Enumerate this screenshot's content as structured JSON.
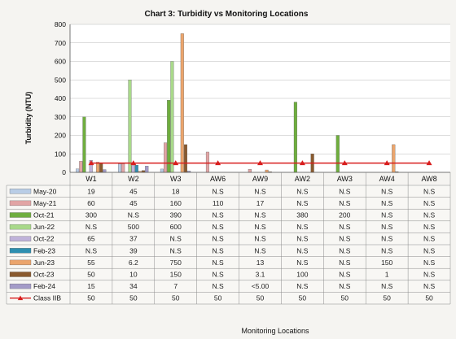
{
  "chart_data": {
    "type": "bar",
    "title": "Chart 3: Turbidity vs Monitoring Locations",
    "xlabel": "Monitoring Locations",
    "ylabel": "Turbidity (NTU)",
    "ylim": [
      0,
      800
    ],
    "yticks": [
      "0",
      "100",
      "200",
      "300",
      "400",
      "500",
      "600",
      "700",
      "800"
    ],
    "categories": [
      "W1",
      "W2",
      "W3",
      "AW6",
      "AW9",
      "AW2",
      "AW3",
      "AW4",
      "AW8"
    ],
    "grid": "horizontal",
    "legend": "data-table-left",
    "series": [
      {
        "name": "May-20",
        "color": "#b9cde6",
        "values": [
          19,
          45,
          18,
          null,
          null,
          null,
          null,
          null,
          null
        ],
        "labels": [
          "19",
          "45",
          "18",
          "N.S",
          "N.S",
          "N.S",
          "N.S",
          "N.S",
          "N.S"
        ]
      },
      {
        "name": "May-21",
        "color": "#e2a5a5",
        "values": [
          60,
          45,
          160,
          110,
          17,
          null,
          null,
          null,
          null
        ],
        "labels": [
          "60",
          "45",
          "160",
          "110",
          "17",
          "N.S",
          "N.S",
          "N.S",
          "N.S"
        ]
      },
      {
        "name": "Oct-21",
        "color": "#6fae3e",
        "values": [
          300,
          null,
          390,
          null,
          null,
          380,
          200,
          null,
          null
        ],
        "labels": [
          "300",
          "N.S",
          "390",
          "N.S",
          "N.S",
          "380",
          "200",
          "N.S",
          "N.S"
        ]
      },
      {
        "name": "Jun-22",
        "color": "#a9d98a",
        "values": [
          null,
          500,
          600,
          null,
          null,
          null,
          null,
          null,
          null
        ],
        "labels": [
          "N.S",
          "500",
          "600",
          "N.S",
          "N.S",
          "N.S",
          "N.S",
          "N.S",
          "N.S"
        ]
      },
      {
        "name": "Oct-22",
        "color": "#bfb2d9",
        "values": [
          65,
          37,
          null,
          null,
          null,
          null,
          null,
          null,
          null
        ],
        "labels": [
          "65",
          "37",
          "N.S",
          "N.S",
          "N.S",
          "N.S",
          "N.S",
          "N.S",
          "N.S"
        ]
      },
      {
        "name": "Feb-23",
        "color": "#2e8fb0",
        "values": [
          null,
          39,
          null,
          null,
          null,
          null,
          null,
          null,
          null
        ],
        "labels": [
          "N.S",
          "39",
          "N.S",
          "N.S",
          "N.S",
          "N.S",
          "N.S",
          "N.S",
          "N.S"
        ]
      },
      {
        "name": "Jun-23",
        "color": "#eba56d",
        "values": [
          55,
          6.2,
          750,
          null,
          13,
          null,
          null,
          150,
          null
        ],
        "labels": [
          "55",
          "6.2",
          "750",
          "N.S",
          "13",
          "N.S",
          "N.S",
          "150",
          "N.S"
        ]
      },
      {
        "name": "Oct-23",
        "color": "#8a5a2e",
        "values": [
          50,
          10,
          150,
          null,
          3.1,
          100,
          null,
          1,
          null
        ],
        "labels": [
          "50",
          "10",
          "150",
          "N.S",
          "3.1",
          "100",
          "N.S",
          "1",
          "N.S"
        ]
      },
      {
        "name": "Feb-24",
        "color": "#a39bc8",
        "values": [
          15,
          34,
          7,
          null,
          null,
          null,
          null,
          null,
          null
        ],
        "labels": [
          "15",
          "34",
          "7",
          "N.S",
          "<5.00",
          "N.S",
          "N.S",
          "N.S",
          "N.S"
        ]
      }
    ],
    "line_series": {
      "name": "Class IIB",
      "color": "#d81e1e",
      "values": [
        50,
        50,
        50,
        50,
        50,
        50,
        50,
        50,
        50
      ],
      "labels": [
        "50",
        "50",
        "50",
        "50",
        "50",
        "50",
        "50",
        "50",
        "50"
      ]
    }
  }
}
